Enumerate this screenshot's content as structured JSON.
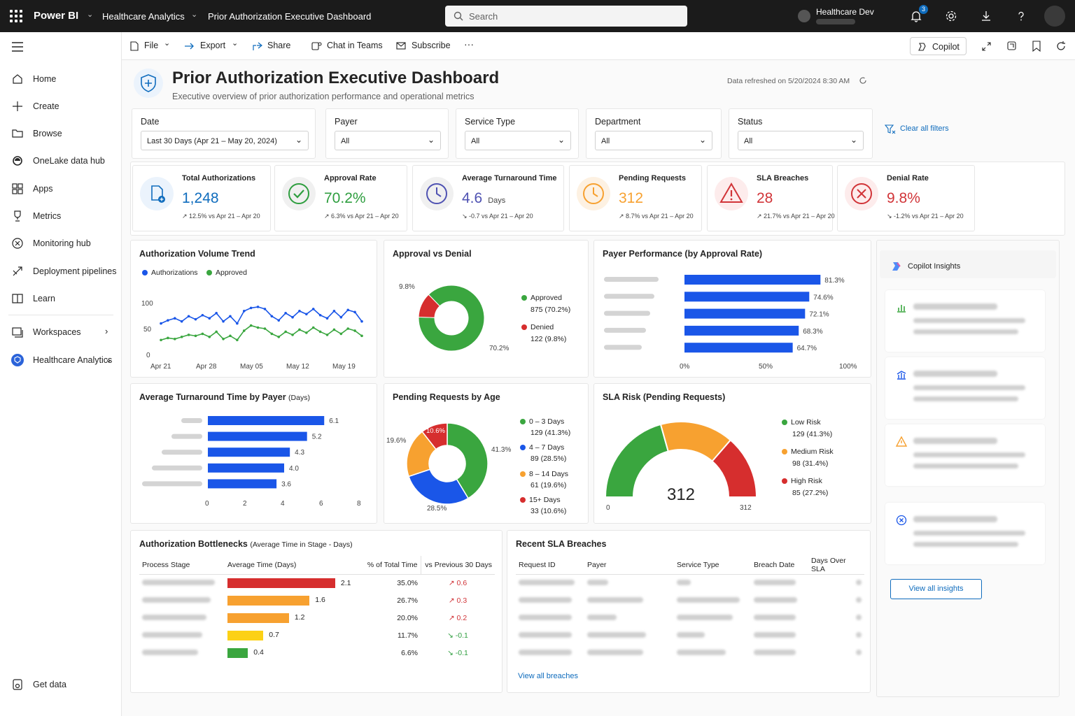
{
  "topbar": {
    "brand": "Power BI",
    "workspace_crumb": "Healthcare Analytics",
    "report_crumb": "Prior Authorization Executive Dashboard",
    "search_placeholder": "Search",
    "workspace_name": "Healthcare Dev",
    "notification_count": "3"
  },
  "sidebar": {
    "items": [
      {
        "label": "Home",
        "icon": "home-icon"
      },
      {
        "label": "Create",
        "icon": "plus-icon"
      },
      {
        "label": "Browse",
        "icon": "folder-icon"
      },
      {
        "label": "OneLake data hub",
        "icon": "onelake-icon"
      },
      {
        "label": "Apps",
        "icon": "apps-icon"
      },
      {
        "label": "Metrics",
        "icon": "trophy-icon"
      },
      {
        "label": "Monitoring hub",
        "icon": "monitoring-icon"
      },
      {
        "label": "Deployment pipelines",
        "icon": "pipeline-icon"
      },
      {
        "label": "Learn",
        "icon": "book-icon"
      },
      {
        "label": "Workspaces",
        "icon": "workspaces-icon"
      },
      {
        "label": "Healthcare Analytics",
        "icon": "workspace-logo-icon"
      }
    ],
    "get_data": "Get data"
  },
  "commandbar": {
    "file": "File",
    "export": "Export",
    "share": "Share",
    "chat": "Chat in Teams",
    "subscribe": "Subscribe",
    "more": "···",
    "copilot": "Copilot"
  },
  "header": {
    "title": "Prior Authorization Executive Dashboard",
    "subtitle": "Executive overview of prior authorization performance and operational metrics",
    "refreshed": "Data refreshed on 5/20/2024 8:30 AM"
  },
  "filters": [
    {
      "label": "Date",
      "value": "Last 30 Days (Apr 21 – May 20, 2024)"
    },
    {
      "label": "Payer",
      "value": "All"
    },
    {
      "label": "Service Type",
      "value": "All"
    },
    {
      "label": "Department",
      "value": "All"
    },
    {
      "label": "Status",
      "value": "All"
    }
  ],
  "clear_filters": "Clear all filters",
  "kpis": [
    {
      "title": "Total Authorizations",
      "value": "1,248",
      "unit": "",
      "delta": "↗ 12.5% vs Apr 21 – Apr 20",
      "color": "#0f6cbd",
      "icon": "document-add-icon"
    },
    {
      "title": "Approval Rate",
      "value": "70.2%",
      "unit": "",
      "delta": "↗ 6.3% vs Apr 21 – Apr 20",
      "color": "#2e9e3f",
      "icon": "check-circle-icon"
    },
    {
      "title": "Average Turnaround Time",
      "value": "4.6",
      "unit": "Days",
      "delta": "↘ -0.7 vs Apr 21 – Apr 20",
      "color": "#4f52b2",
      "icon": "clock-icon"
    },
    {
      "title": "Pending Requests",
      "value": "312",
      "unit": "",
      "delta": "↗ 8.7% vs Apr 21 – Apr 20",
      "color": "#f7a130",
      "icon": "clock-orange-icon"
    },
    {
      "title": "SLA Breaches",
      "value": "28",
      "unit": "",
      "delta": "↗ 21.7% vs Apr 21 – Apr 20",
      "color": "#d13438",
      "icon": "warning-icon"
    },
    {
      "title": "Denial Rate",
      "value": "9.8%",
      "unit": "",
      "delta": "↘ -1.2% vs Apr 21 – Apr 20",
      "color": "#d13438",
      "icon": "x-circle-icon"
    }
  ],
  "volume_trend": {
    "title": "Authorization Volume Trend",
    "legend": [
      "Authorizations",
      "Approved"
    ],
    "y_ticks": [
      "100",
      "50",
      "0"
    ],
    "x_ticks": [
      "Apr 21",
      "Apr 28",
      "May 05",
      "May 12",
      "May 19"
    ],
    "colors": [
      "#1a56e8",
      "#3aa63f"
    ]
  },
  "approval_denial": {
    "title": "Approval vs Denial",
    "approved_label": "Approved",
    "approved_value": "875 (70.2%)",
    "denied_label": "Denied",
    "denied_value": "122 (9.8%)",
    "pct_denied": "9.8%",
    "pct_approved": "70.2%"
  },
  "payer_perf": {
    "title": "Payer Performance (by Approval Rate)",
    "x_ticks": [
      "0%",
      "50%",
      "100%"
    ]
  },
  "turnaround": {
    "title": "Average Turnaround Time by Payer",
    "title_unit": "(Days)",
    "x_ticks": [
      "0",
      "2",
      "4",
      "6",
      "8"
    ]
  },
  "pending_age": {
    "title": "Pending Requests by Age",
    "legend": [
      {
        "label": "0 – 3 Days",
        "value": "129 (41.3%)",
        "color": "#3aa63f"
      },
      {
        "label": "4 – 7 Days",
        "value": "89 (28.5%)",
        "color": "#1a56e8"
      },
      {
        "label": "8 – 14 Days",
        "value": "61 (19.6%)",
        "color": "#f7a130"
      },
      {
        "label": "15+ Days",
        "value": "33 (10.6%)",
        "color": "#d62e2e"
      }
    ],
    "pct_labels": [
      "10.6%",
      "41.3%",
      "19.6%",
      "28.5%"
    ]
  },
  "sla_risk": {
    "title": "SLA Risk (Pending Requests)",
    "center_value": "312",
    "min": "0",
    "max": "312",
    "legend": [
      {
        "label": "Low Risk",
        "value": "129 (41.3%)",
        "color": "#3aa63f"
      },
      {
        "label": "Medium Risk",
        "value": "98 (31.4%)",
        "color": "#f7a130"
      },
      {
        "label": "High Risk",
        "value": "85 (27.2%)",
        "color": "#d62e2e"
      }
    ]
  },
  "copilot": {
    "title": "Copilot Insights",
    "view_all": "View all insights"
  },
  "bottlenecks": {
    "title": "Authorization Bottlenecks",
    "title_suffix": "(Average Time in Stage - Days)",
    "headers": [
      "Process Stage",
      "Average Time (Days)",
      "% of Total Time",
      "vs Previous 30 Days"
    ],
    "rows": [
      {
        "value": "2.1",
        "pct": "35.0%",
        "delta": "↗  0.6",
        "color": "#d62e2e"
      },
      {
        "value": "1.6",
        "pct": "26.7%",
        "delta": "↗  0.3",
        "color": "#f7a130"
      },
      {
        "value": "1.2",
        "pct": "20.0%",
        "delta": "↗  0.2",
        "color": "#f7a130"
      },
      {
        "value": "0.7",
        "pct": "11.7%",
        "delta": "↘  -0.1",
        "color": "#fcd116"
      },
      {
        "value": "0.4",
        "pct": "6.6%",
        "delta": "↘  -0.1",
        "color": "#3aa63f"
      }
    ]
  },
  "breaches": {
    "title": "Recent SLA Breaches",
    "headers": [
      "Request ID",
      "Payer",
      "Service Type",
      "Breach Date",
      "Days Over SLA"
    ],
    "view_all": "View all breaches"
  },
  "chart_data": [
    {
      "type": "line",
      "title": "Authorization Volume Trend",
      "x": [
        "Apr 21",
        "",
        "",
        "",
        "",
        "",
        "",
        "Apr 28",
        "",
        "",
        "",
        "",
        "",
        "",
        "May 05",
        "",
        "",
        "",
        "",
        "",
        "",
        "May 12",
        "",
        "",
        "",
        "",
        "",
        "",
        "May 19",
        ""
      ],
      "series": [
        {
          "name": "Authorizations",
          "values": [
            60,
            66,
            70,
            64,
            74,
            68,
            76,
            70,
            80,
            64,
            74,
            60,
            84,
            90,
            92,
            88,
            74,
            66,
            80,
            72,
            84,
            78,
            88,
            76,
            70,
            84,
            72,
            86,
            82,
            64
          ]
        },
        {
          "name": "Approved",
          "values": [
            28,
            32,
            30,
            34,
            38,
            36,
            40,
            34,
            44,
            30,
            36,
            28,
            46,
            56,
            52,
            50,
            40,
            34,
            44,
            38,
            48,
            42,
            52,
            44,
            38,
            48,
            40,
            50,
            46,
            36
          ]
        }
      ],
      "ylim": [
        0,
        100
      ]
    },
    {
      "type": "pie",
      "title": "Approval vs Denial",
      "categories": [
        "Approved",
        "Denied"
      ],
      "values": [
        875,
        122
      ]
    },
    {
      "type": "bar",
      "title": "Payer Performance (by Approval Rate)",
      "categories": [
        "",
        "",
        "",
        "",
        ""
      ],
      "values": [
        81.3,
        74.6,
        72.1,
        68.3,
        64.7
      ],
      "xlim": [
        0,
        100
      ]
    },
    {
      "type": "bar",
      "title": "Average Turnaround Time by Payer",
      "categories": [
        "",
        "",
        "",
        "",
        ""
      ],
      "values": [
        6.1,
        5.2,
        4.3,
        4.0,
        3.6
      ],
      "xlim": [
        0,
        8
      ]
    },
    {
      "type": "pie",
      "title": "Pending Requests by Age",
      "categories": [
        "0 – 3 Days",
        "4 – 7 Days",
        "8 – 14 Days",
        "15+ Days"
      ],
      "values": [
        129,
        89,
        61,
        33
      ]
    },
    {
      "type": "pie",
      "title": "SLA Risk (Pending Requests)",
      "categories": [
        "Low Risk",
        "Medium Risk",
        "High Risk"
      ],
      "values": [
        129,
        98,
        85
      ]
    },
    {
      "type": "bar",
      "title": "Authorization Bottlenecks",
      "categories": [
        "",
        "",
        "",
        "",
        ""
      ],
      "values": [
        2.1,
        1.6,
        1.2,
        0.7,
        0.4
      ]
    }
  ]
}
